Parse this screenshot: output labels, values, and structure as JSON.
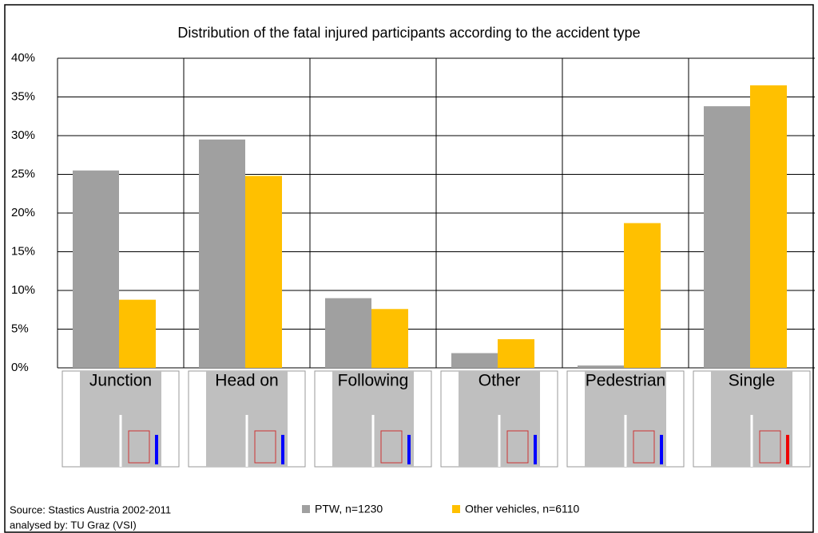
{
  "chart_data": {
    "type": "bar",
    "title": "Distribution of the fatal injured participants according to the accident type",
    "categories": [
      "Junction",
      "Head on",
      "Following",
      "Other",
      "Pedestrian",
      "Single"
    ],
    "series": [
      {
        "name": "PTW, n=1230",
        "color": "#a0a0a0",
        "values": [
          25.5,
          29.5,
          9.0,
          1.9,
          0.3,
          33.8
        ]
      },
      {
        "name": "Other vehicles, n=6110",
        "color": "#ffc000",
        "values": [
          8.8,
          24.8,
          7.6,
          3.7,
          18.7,
          36.5
        ]
      }
    ],
    "ylim": [
      0,
      40
    ],
    "yticks": [
      {
        "value": 0,
        "label": "0%"
      },
      {
        "value": 5,
        "label": "5%"
      },
      {
        "value": 10,
        "label": "10%"
      },
      {
        "value": 15,
        "label": "15%"
      },
      {
        "value": 20,
        "label": "20%"
      },
      {
        "value": 25,
        "label": "25%"
      },
      {
        "value": 30,
        "label": "30%"
      },
      {
        "value": 35,
        "label": "35%"
      },
      {
        "value": 40,
        "label": "40%"
      }
    ],
    "grid": true,
    "source": [
      "Source: Stastics Austria 2002-2011",
      "analysed by: TU Graz (VSI)"
    ]
  }
}
